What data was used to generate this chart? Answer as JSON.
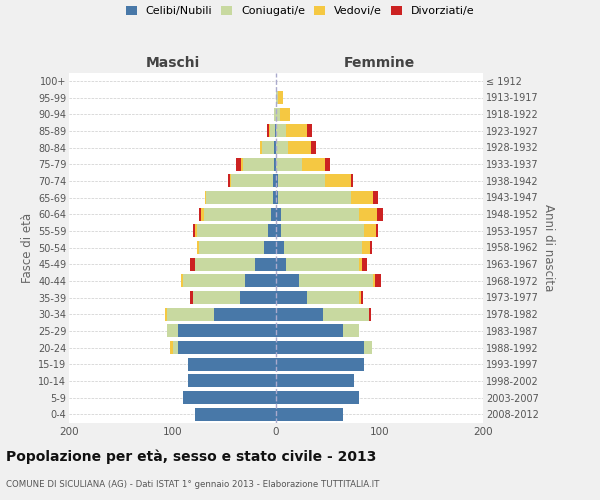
{
  "age_groups": [
    "0-4",
    "5-9",
    "10-14",
    "15-19",
    "20-24",
    "25-29",
    "30-34",
    "35-39",
    "40-44",
    "45-49",
    "50-54",
    "55-59",
    "60-64",
    "65-69",
    "70-74",
    "75-79",
    "80-84",
    "85-89",
    "90-94",
    "95-99",
    "100+"
  ],
  "birth_years": [
    "2008-2012",
    "2003-2007",
    "1998-2002",
    "1993-1997",
    "1988-1992",
    "1983-1987",
    "1978-1982",
    "1973-1977",
    "1968-1972",
    "1963-1967",
    "1958-1962",
    "1953-1957",
    "1948-1952",
    "1943-1947",
    "1938-1942",
    "1933-1937",
    "1928-1932",
    "1923-1927",
    "1918-1922",
    "1913-1917",
    "≤ 1912"
  ],
  "males": {
    "celibi": [
      78,
      90,
      85,
      85,
      95,
      95,
      60,
      35,
      30,
      20,
      12,
      8,
      5,
      3,
      3,
      2,
      2,
      1,
      0,
      0,
      0
    ],
    "coniugati": [
      0,
      0,
      0,
      0,
      5,
      10,
      45,
      45,
      60,
      58,
      62,
      68,
      65,
      65,
      40,
      30,
      12,
      5,
      2,
      0,
      0
    ],
    "vedovi": [
      0,
      0,
      0,
      0,
      2,
      0,
      2,
      0,
      2,
      0,
      2,
      2,
      2,
      1,
      1,
      2,
      1,
      1,
      0,
      0,
      0
    ],
    "divorziati": [
      0,
      0,
      0,
      0,
      0,
      0,
      0,
      3,
      0,
      5,
      0,
      2,
      2,
      0,
      2,
      5,
      0,
      2,
      0,
      0,
      0
    ]
  },
  "females": {
    "nubili": [
      65,
      80,
      75,
      85,
      85,
      65,
      45,
      30,
      22,
      10,
      8,
      5,
      5,
      2,
      2,
      0,
      0,
      0,
      0,
      0,
      0
    ],
    "coniugate": [
      0,
      0,
      0,
      0,
      8,
      15,
      45,
      50,
      72,
      70,
      75,
      80,
      75,
      70,
      45,
      25,
      12,
      10,
      4,
      2,
      0
    ],
    "vedove": [
      0,
      0,
      0,
      0,
      0,
      0,
      0,
      2,
      2,
      3,
      8,
      12,
      18,
      22,
      25,
      22,
      22,
      20,
      10,
      5,
      0
    ],
    "divorziate": [
      0,
      0,
      0,
      0,
      0,
      0,
      2,
      2,
      5,
      5,
      2,
      2,
      5,
      5,
      2,
      5,
      5,
      5,
      0,
      0,
      0
    ]
  },
  "colors": {
    "celibi_nubili": "#4878a8",
    "coniugati": "#c8d9a0",
    "vedovi": "#f5c842",
    "divorziati": "#cc2222"
  },
  "title": "Popolazione per età, sesso e stato civile - 2013",
  "subtitle": "COMUNE DI SICULIANA (AG) - Dati ISTAT 1° gennaio 2013 - Elaborazione TUTTITALIA.IT",
  "xlabel_left": "Maschi",
  "xlabel_right": "Femmine",
  "ylabel_left": "Fasce di età",
  "ylabel_right": "Anni di nascita",
  "xlim": 200,
  "bg_color": "#f0f0f0",
  "bar_bg": "#ffffff"
}
